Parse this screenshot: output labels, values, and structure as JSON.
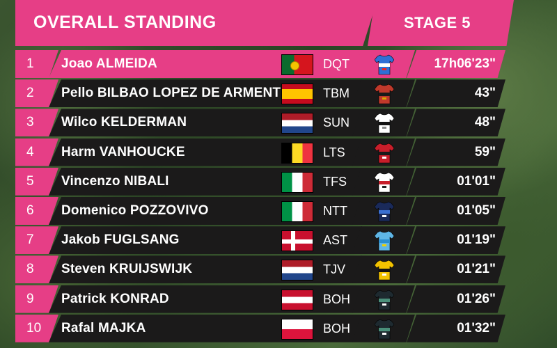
{
  "header": {
    "title": "OVERALL STANDING",
    "stage": "STAGE 5"
  },
  "colors": {
    "accent": "#e63e86",
    "row_bg": "#1b1a1a",
    "text": "#ffffff"
  },
  "rows": [
    {
      "pos": "1",
      "name": "Joao ALMEIDA",
      "flag": "portugal-flag",
      "team": "DQT",
      "time": "17h06'23\"",
      "jersey": {
        "body": "#2f6fd6",
        "band": "#ffffff",
        "accent": "#e22"
      }
    },
    {
      "pos": "2",
      "name": "Pello BILBAO LOPEZ DE ARMENTIA",
      "flag": "spain-flag",
      "team": "TBM",
      "time": "43\"",
      "jersey": {
        "body": "#c0392b",
        "band": "#1a1a1a",
        "accent": "#d9a400"
      }
    },
    {
      "pos": "3",
      "name": "Wilco KELDERMAN",
      "flag": "netherlands-flag",
      "team": "SUN",
      "time": "48\"",
      "jersey": {
        "body": "#ffffff",
        "band": "#111111",
        "accent": "#888"
      }
    },
    {
      "pos": "4",
      "name": "Harm VANHOUCKE",
      "flag": "belgium-flag",
      "team": "LTS",
      "time": "59\"",
      "jersey": {
        "body": "#c81e2a",
        "band": "#1a1a1a",
        "accent": "#ffffff"
      }
    },
    {
      "pos": "5",
      "name": "Vincenzo NIBALI",
      "flag": "italy-flag",
      "team": "TFS",
      "time": "01'01\"",
      "jersey": {
        "body": "#ffffff",
        "band": "#c81e2a",
        "accent": "#222"
      }
    },
    {
      "pos": "6",
      "name": "Domenico POZZOVIVO",
      "flag": "italy-flag",
      "team": "NTT",
      "time": "01'05\"",
      "jersey": {
        "body": "#1a2a5a",
        "band": "#3a6fd0",
        "accent": "#fff"
      }
    },
    {
      "pos": "7",
      "name": "Jakob FUGLSANG",
      "flag": "denmark-flag",
      "team": "AST",
      "time": "01'19\"",
      "jersey": {
        "body": "#5fb6e6",
        "band": "#2a8fd0",
        "accent": "#f0d000"
      }
    },
    {
      "pos": "8",
      "name": "Steven KRUIJSWIJK",
      "flag": "netherlands-flag",
      "team": "TJV",
      "time": "01'21\"",
      "jersey": {
        "body": "#f2c200",
        "band": "#111111",
        "accent": "#fff"
      }
    },
    {
      "pos": "9",
      "name": "Patrick KONRAD",
      "flag": "austria-flag",
      "team": "BOH",
      "time": "01'26\"",
      "jersey": {
        "body": "#1e2a30",
        "band": "#4a8f7a",
        "accent": "#fff"
      }
    },
    {
      "pos": "10",
      "name": "Rafal MAJKA",
      "flag": "poland-flag",
      "team": "BOH",
      "time": "01'32\"",
      "jersey": {
        "body": "#1e2a30",
        "band": "#4a8f7a",
        "accent": "#fff"
      }
    }
  ]
}
